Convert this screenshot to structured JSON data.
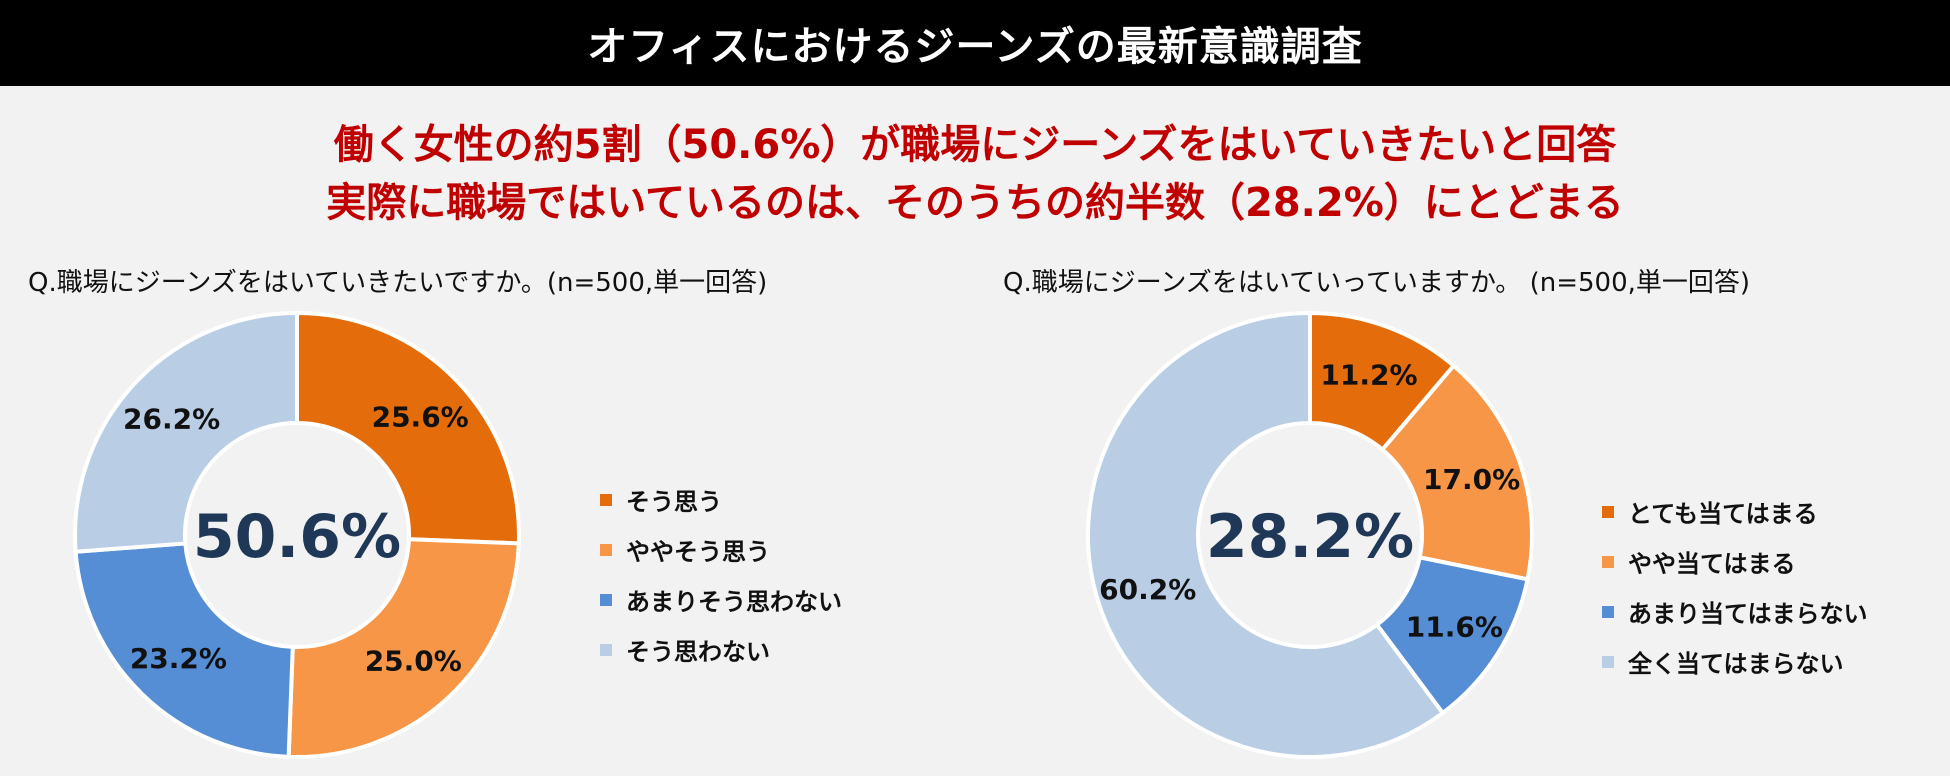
{
  "header": {
    "title": "オフィスにおけるジーンズの最新意識調査",
    "headline_line1": "働く女性の約5割（50.6%）が職場にジーンズをはいていきたいと回答",
    "headline_line2": "実際に職場ではいているのは、そのうちの約半数（28.2%）にとどまる"
  },
  "chart_data": [
    {
      "type": "pie",
      "donut": true,
      "title": "Q.職場にジーンズをはいていきたいですか。(n=500,単一回答)",
      "center_label": "50.6%",
      "legend_placement": "right",
      "categories": [
        "そう思う",
        "ややそう思う",
        "あまりそう思わない",
        "そう思わない"
      ],
      "values": [
        25.6,
        25.0,
        23.2,
        26.2
      ],
      "labels": [
        "25.6%",
        "25.0%",
        "23.2%",
        "26.2%"
      ],
      "colors": [
        "#e46c0a",
        "#f79646",
        "#558ed5",
        "#b9cde5"
      ]
    },
    {
      "type": "pie",
      "donut": true,
      "title": "Q.職場にジーンズをはいていっていますか。 (n=500,単一回答)",
      "center_label": "28.2%",
      "legend_placement": "right",
      "categories": [
        "とても当てはまる",
        "やや当てはまる",
        "あまり当てはまらない",
        "全く当てはまらない"
      ],
      "values": [
        11.2,
        17.0,
        11.6,
        60.2
      ],
      "labels": [
        "11.2%",
        "17.0%",
        "11.6%",
        "60.2%"
      ],
      "colors": [
        "#e46c0a",
        "#f79646",
        "#558ed5",
        "#b9cde5"
      ]
    }
  ]
}
